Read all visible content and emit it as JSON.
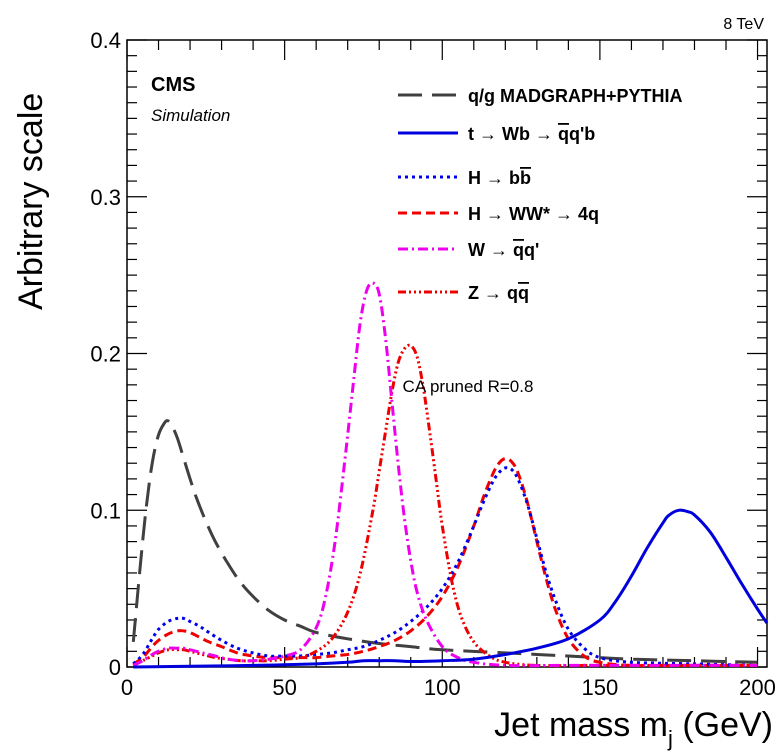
{
  "energy_label": "8 TeV",
  "experiment": "CMS",
  "simulation_label": "Simulation",
  "algo_label": "CA pruned R=0.8",
  "chart_data": {
    "type": "line",
    "xlabel": "Jet mass m",
    "xlabel_sub": "j",
    "xlabel_unit": " (GeV)",
    "ylabel": "Arbitrary scale",
    "xlim": [
      0,
      203
    ],
    "ylim": [
      0,
      0.4
    ],
    "x_ticks": [
      0,
      50,
      100,
      150,
      200
    ],
    "y_ticks": [
      0,
      0.1,
      0.2,
      0.3,
      0.4
    ],
    "x_tick_labels": [
      "0",
      "50",
      "100",
      "150",
      "200"
    ],
    "y_tick_labels": [
      "0",
      "0.1",
      "0.2",
      "0.3",
      "0.4"
    ],
    "legend_position": "top-right",
    "series": [
      {
        "name": "q/g MADGRAPH+PYTHIA",
        "name_parts": [
          {
            "t": "q/g MADGRAPH+PYTHIA"
          }
        ],
        "color": "#404040",
        "dash": "24,10",
        "x": [
          2,
          4,
          6,
          8,
          10,
          12,
          13,
          14,
          16,
          18,
          20,
          22,
          25,
          28,
          32,
          36,
          40,
          45,
          50,
          55,
          60,
          70,
          80,
          90,
          100,
          120,
          140,
          160,
          180,
          200
        ],
        "y": [
          0.016,
          0.06,
          0.1,
          0.13,
          0.148,
          0.156,
          0.157,
          0.155,
          0.146,
          0.133,
          0.12,
          0.108,
          0.093,
          0.08,
          0.066,
          0.054,
          0.045,
          0.036,
          0.03,
          0.026,
          0.022,
          0.018,
          0.015,
          0.013,
          0.011,
          0.009,
          0.007,
          0.005,
          0.004,
          0.003
        ]
      },
      {
        "name": "t → Wb → q̄q'b",
        "name_parts": [
          {
            "t": "t → Wb → "
          },
          {
            "t": "q",
            "over": true
          },
          {
            "t": "q'b"
          }
        ],
        "color": "#0000dd",
        "dash": "",
        "x": [
          2,
          20,
          40,
          60,
          70,
          75,
          80,
          85,
          90,
          100,
          110,
          120,
          130,
          140,
          150,
          155,
          160,
          165,
          170,
          172,
          175,
          178,
          180,
          185,
          190,
          195,
          200,
          203
        ],
        "y": [
          0,
          0.0005,
          0.001,
          0.002,
          0.003,
          0.004,
          0.004,
          0.004,
          0.0035,
          0.004,
          0.005,
          0.008,
          0.012,
          0.018,
          0.03,
          0.042,
          0.058,
          0.076,
          0.092,
          0.097,
          0.1,
          0.099,
          0.097,
          0.086,
          0.07,
          0.053,
          0.037,
          0.028
        ]
      },
      {
        "name": "H → bb̄",
        "name_parts": [
          {
            "t": "H → b"
          },
          {
            "t": "b",
            "over": true
          }
        ],
        "color": "#0000ee",
        "dash": "3,4",
        "x": [
          2,
          5,
          8,
          10,
          13,
          16,
          18,
          20,
          23,
          26,
          30,
          35,
          40,
          45,
          50,
          55,
          60,
          65,
          70,
          75,
          80,
          85,
          90,
          95,
          100,
          105,
          110,
          113,
          116,
          118,
          120,
          122,
          124,
          127,
          130,
          133,
          136,
          140,
          145,
          150,
          160,
          180,
          200
        ],
        "y": [
          0.002,
          0.008,
          0.018,
          0.024,
          0.029,
          0.031,
          0.031,
          0.029,
          0.026,
          0.022,
          0.017,
          0.012,
          0.009,
          0.007,
          0.007,
          0.007,
          0.008,
          0.009,
          0.011,
          0.013,
          0.017,
          0.022,
          0.029,
          0.038,
          0.05,
          0.067,
          0.09,
          0.105,
          0.118,
          0.124,
          0.127,
          0.126,
          0.12,
          0.104,
          0.082,
          0.06,
          0.042,
          0.024,
          0.012,
          0.006,
          0.003,
          0.002,
          0.001
        ]
      },
      {
        "name": "H → WW* → 4q",
        "name_parts": [
          {
            "t": "H → WW* → 4q"
          }
        ],
        "color": "#ee0000",
        "dash": "9,5",
        "x": [
          2,
          5,
          8,
          10,
          13,
          16,
          18,
          20,
          23,
          26,
          30,
          35,
          40,
          45,
          50,
          55,
          60,
          65,
          70,
          75,
          80,
          85,
          90,
          95,
          100,
          105,
          110,
          113,
          116,
          118,
          120,
          122,
          124,
          127,
          130,
          133,
          136,
          140,
          145,
          150,
          160,
          180,
          200
        ],
        "y": [
          0.002,
          0.006,
          0.013,
          0.017,
          0.021,
          0.023,
          0.023,
          0.022,
          0.019,
          0.016,
          0.013,
          0.009,
          0.007,
          0.006,
          0.006,
          0.006,
          0.006,
          0.007,
          0.008,
          0.01,
          0.013,
          0.017,
          0.023,
          0.032,
          0.045,
          0.064,
          0.09,
          0.108,
          0.123,
          0.13,
          0.133,
          0.131,
          0.124,
          0.105,
          0.08,
          0.056,
          0.036,
          0.018,
          0.007,
          0.003,
          0.001,
          0.001,
          0.001
        ]
      },
      {
        "name": "W → q̄q'",
        "name_parts": [
          {
            "t": "W → "
          },
          {
            "t": "q",
            "over": true
          },
          {
            "t": "q'"
          }
        ],
        "color": "#ee00ee",
        "dash": "10,4,2,4",
        "x": [
          2,
          5,
          8,
          10,
          13,
          16,
          18,
          20,
          24,
          28,
          32,
          36,
          40,
          45,
          50,
          55,
          60,
          63,
          66,
          69,
          72,
          74,
          76,
          78,
          80,
          82,
          84,
          86,
          88,
          90,
          92,
          95,
          100,
          105,
          110,
          120,
          140,
          160,
          200
        ],
        "y": [
          0.001,
          0.004,
          0.008,
          0.01,
          0.012,
          0.012,
          0.012,
          0.011,
          0.009,
          0.007,
          0.005,
          0.004,
          0.004,
          0.005,
          0.007,
          0.011,
          0.025,
          0.045,
          0.08,
          0.13,
          0.185,
          0.22,
          0.24,
          0.245,
          0.238,
          0.21,
          0.17,
          0.13,
          0.095,
          0.068,
          0.048,
          0.03,
          0.013,
          0.006,
          0.003,
          0.001,
          0.001,
          0.001,
          0.001
        ]
      },
      {
        "name": "Z → qq̄",
        "name_parts": [
          {
            "t": "Z → q"
          },
          {
            "t": "q",
            "over": true
          }
        ],
        "color": "#ee0000",
        "dash": "8,3,2,3,2,3,2,3",
        "x": [
          2,
          5,
          8,
          10,
          13,
          16,
          18,
          20,
          24,
          28,
          32,
          36,
          40,
          45,
          50,
          55,
          60,
          65,
          70,
          74,
          78,
          80,
          82,
          84,
          86,
          88,
          90,
          92,
          94,
          96,
          98,
          100,
          103,
          106,
          110,
          115,
          120,
          130,
          150,
          200
        ],
        "y": [
          0.001,
          0.004,
          0.007,
          0.009,
          0.011,
          0.011,
          0.011,
          0.01,
          0.008,
          0.006,
          0.005,
          0.004,
          0.004,
          0.004,
          0.005,
          0.006,
          0.01,
          0.018,
          0.035,
          0.06,
          0.1,
          0.125,
          0.15,
          0.175,
          0.194,
          0.203,
          0.205,
          0.198,
          0.178,
          0.15,
          0.12,
          0.09,
          0.055,
          0.032,
          0.016,
          0.007,
          0.003,
          0.001,
          0.001,
          0.001
        ]
      }
    ]
  }
}
